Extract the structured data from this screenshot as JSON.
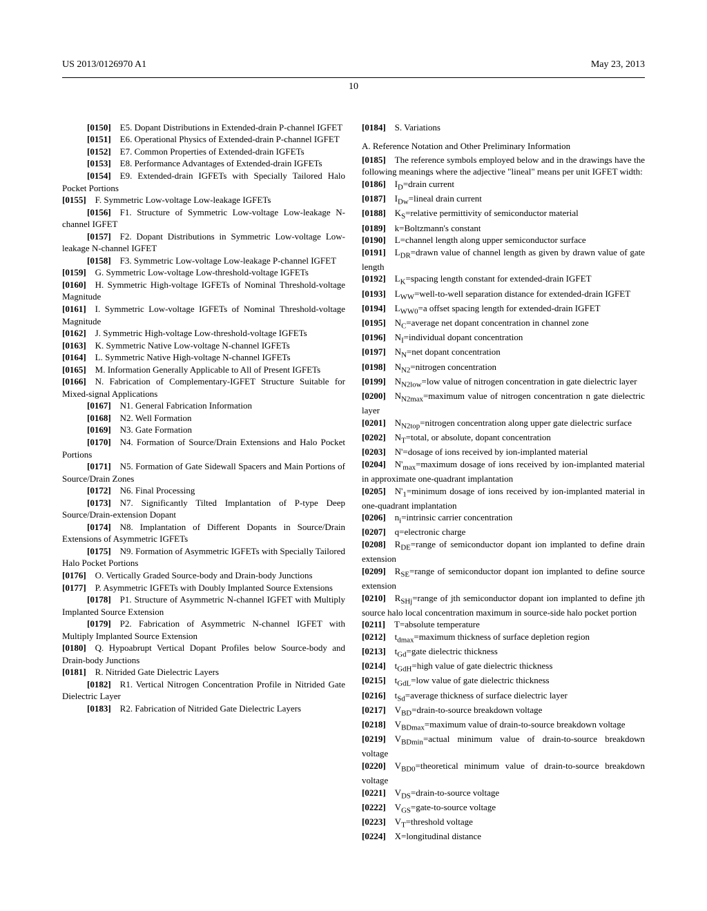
{
  "header": {
    "left": "US 2013/0126970 A1",
    "right": "May 23, 2013"
  },
  "page_number": "10",
  "left_column": [
    {
      "num": "[0150]",
      "indent": 2,
      "text": "E5. Dopant Distributions in Extended-drain P-channel IGFET"
    },
    {
      "num": "[0151]",
      "indent": 2,
      "text": "E6. Operational Physics of Extended-drain P-channel IGFET"
    },
    {
      "num": "[0152]",
      "indent": 2,
      "text": "E7. Common Properties of Extended-drain IGFETs"
    },
    {
      "num": "[0153]",
      "indent": 2,
      "text": "E8. Performance Advantages of Extended-drain IGFETs"
    },
    {
      "num": "[0154]",
      "indent": 2,
      "text": "E9. Extended-drain IGFETs with Specially Tailored Halo Pocket Portions"
    },
    {
      "num": "[0155]",
      "indent": 0,
      "text": "F. Symmetric Low-voltage Low-leakage IGFETs"
    },
    {
      "num": "[0156]",
      "indent": 2,
      "text": "F1. Structure of Symmetric Low-voltage Low-leakage N-channel IGFET"
    },
    {
      "num": "[0157]",
      "indent": 2,
      "text": "F2. Dopant Distributions in Symmetric Low-voltage Low-leakage N-channel IGFET"
    },
    {
      "num": "[0158]",
      "indent": 2,
      "text": "F3. Symmetric Low-voltage Low-leakage P-channel IGFET"
    },
    {
      "num": "[0159]",
      "indent": 0,
      "text": "G. Symmetric Low-voltage Low-threshold-voltage IGFETs"
    },
    {
      "num": "[0160]",
      "indent": 0,
      "text": "H. Symmetric High-voltage IGFETs of Nominal Threshold-voltage Magnitude"
    },
    {
      "num": "[0161]",
      "indent": 0,
      "text": "I. Symmetric Low-voltage IGFETs of Nominal Threshold-voltage Magnitude"
    },
    {
      "num": "[0162]",
      "indent": 0,
      "text": "J. Symmetric High-voltage Low-threshold-voltage IGFETs"
    },
    {
      "num": "[0163]",
      "indent": 0,
      "text": "K. Symmetric Native Low-voltage N-channel IGFETs"
    },
    {
      "num": "[0164]",
      "indent": 0,
      "text": "L. Symmetric Native High-voltage N-channel IGFETs"
    },
    {
      "num": "[0165]",
      "indent": 0,
      "text": "M. Information Generally Applicable to All of Present IGFETs"
    },
    {
      "num": "[0166]",
      "indent": 0,
      "text": "N. Fabrication of Complementary-IGFET Structure Suitable for Mixed-signal Applications"
    },
    {
      "num": "[0167]",
      "indent": 2,
      "text": "N1. General Fabrication Information"
    },
    {
      "num": "[0168]",
      "indent": 2,
      "text": "N2. Well Formation"
    },
    {
      "num": "[0169]",
      "indent": 2,
      "text": "N3. Gate Formation"
    },
    {
      "num": "[0170]",
      "indent": 2,
      "text": "N4. Formation of Source/Drain Extensions and Halo Pocket Portions"
    },
    {
      "num": "[0171]",
      "indent": 2,
      "text": "N5. Formation of Gate Sidewall Spacers and Main Portions of Source/Drain Zones"
    },
    {
      "num": "[0172]",
      "indent": 2,
      "text": "N6. Final Processing"
    },
    {
      "num": "[0173]",
      "indent": 2,
      "text": "N7. Significantly Tilted Implantation of P-type Deep Source/Drain-extension Dopant"
    },
    {
      "num": "[0174]",
      "indent": 2,
      "text": "N8. Implantation of Different Dopants in Source/Drain Extensions of Asymmetric IGFETs"
    },
    {
      "num": "[0175]",
      "indent": 2,
      "text": "N9. Formation of Asymmetric IGFETs with Specially Tailored Halo Pocket Portions"
    },
    {
      "num": "[0176]",
      "indent": 0,
      "text": "O. Vertically Graded Source-body and Drain-body Junctions"
    },
    {
      "num": "[0177]",
      "indent": 0,
      "text": "P. Asymmetric IGFETs with Doubly Implanted Source Extensions"
    },
    {
      "num": "[0178]",
      "indent": 2,
      "text": "P1. Structure of Asymmetric N-channel IGFET with Multiply Implanted Source Extension"
    },
    {
      "num": "[0179]",
      "indent": 2,
      "text": "P2. Fabrication of Asymmetric N-channel IGFET with Multiply Implanted Source Extension"
    },
    {
      "num": "[0180]",
      "indent": 0,
      "text": "Q. Hypoabrupt Vertical Dopant Profiles below Source-body and Drain-body Junctions"
    },
    {
      "num": "[0181]",
      "indent": 0,
      "text": "R. Nitrided Gate Dielectric Layers"
    },
    {
      "num": "[0182]",
      "indent": 2,
      "text": "R1. Vertical Nitrogen Concentration Profile in Nitrided Gate Dielectric Layer"
    },
    {
      "num": "[0183]",
      "indent": 2,
      "text": "R2. Fabrication of Nitrided Gate Dielectric Layers"
    }
  ],
  "right_column_top": {
    "num": "[0184]",
    "indent": 0,
    "text": "S. Variations"
  },
  "section_a_title": "A. Reference Notation and Other Preliminary Information",
  "right_intro": {
    "num": "[0185]",
    "indent": 1,
    "text": "The reference symbols employed below and in the drawings have the following meanings where the adjective \"lineal\" means per unit IGFET width:"
  },
  "symbols": [
    {
      "num": "[0186]",
      "html": "I<sub>D</sub>=drain current"
    },
    {
      "num": "[0187]",
      "html": "I<sub>Dw</sub>=lineal drain current"
    },
    {
      "num": "[0188]",
      "html": "K<sub>S</sub>=relative permittivity of semiconductor material"
    },
    {
      "num": "[0189]",
      "html": "k=Boltzmann's constant"
    },
    {
      "num": "[0190]",
      "html": "L=channel length along upper semiconductor surface"
    },
    {
      "num": "[0191]",
      "html": "L<sub>DR</sub>=drawn value of channel length as given by drawn value of gate length"
    },
    {
      "num": "[0192]",
      "html": "L<sub>K</sub>=spacing length constant for extended-drain IGFET"
    },
    {
      "num": "[0193]",
      "html": "L<sub>WW</sub>=well-to-well separation distance for extended-drain IGFET"
    },
    {
      "num": "[0194]",
      "html": "L<sub>WW0</sub>=a offset spacing length for extended-drain IGFET"
    },
    {
      "num": "[0195]",
      "html": "N<sub>C</sub>=average net dopant concentration in channel zone"
    },
    {
      "num": "[0196]",
      "html": "N<sub>I</sub>=individual dopant concentration"
    },
    {
      "num": "[0197]",
      "html": "N<sub>N</sub>=net dopant concentration"
    },
    {
      "num": "[0198]",
      "html": "N<sub>N2</sub>=nitrogen concentration"
    },
    {
      "num": "[0199]",
      "html": "N<sub>N2low</sub>=low value of nitrogen concentration in gate dielectric layer"
    },
    {
      "num": "[0200]",
      "html": "N<sub>N2max</sub>=maximum value of nitrogen concentration n gate dielectric layer"
    },
    {
      "num": "[0201]",
      "html": "N<sub>N2top</sub>=nitrogen concentration along upper gate dielectric surface"
    },
    {
      "num": "[0202]",
      "html": "N<sub>T</sub>=total, or absolute, dopant concentration"
    },
    {
      "num": "[0203]",
      "html": "N'=dosage of ions received by ion-implanted material"
    },
    {
      "num": "[0204]",
      "html": "N'<sub>max</sub>=maximum dosage of ions received by ion-implanted material in approximate one-quadrant implantation"
    },
    {
      "num": "[0205]",
      "html": "N'<sub>1</sub>=minimum dosage of ions received by ion-implanted material in one-quadrant implantation"
    },
    {
      "num": "[0206]",
      "html": "n<sub>i</sub>=intrinsic carrier concentration"
    },
    {
      "num": "[0207]",
      "html": "q=electronic charge"
    },
    {
      "num": "[0208]",
      "html": "R<sub>DE</sub>=range of semiconductor dopant ion implanted to define drain extension"
    },
    {
      "num": "[0209]",
      "html": "R<sub>SE</sub>=range of semiconductor dopant ion implanted to define source extension"
    },
    {
      "num": "[0210]",
      "html": "R<sub>SHj</sub>=range of jth semiconductor dopant ion implanted to define jth source halo local concentration maximum in source-side halo pocket portion"
    },
    {
      "num": "[0211]",
      "html": "T=absolute temperature"
    },
    {
      "num": "[0212]",
      "html": "t<sub>dmax</sub>=maximum thickness of surface depletion region"
    },
    {
      "num": "[0213]",
      "html": "t<sub>Gd</sub>=gate dielectric thickness"
    },
    {
      "num": "[0214]",
      "html": "t<sub>GdH</sub>=high value of gate dielectric thickness"
    },
    {
      "num": "[0215]",
      "html": "t<sub>GdL</sub>=low value of gate dielectric thickness"
    },
    {
      "num": "[0216]",
      "html": "t<sub>Sd</sub>=average thickness of surface dielectric layer"
    },
    {
      "num": "[0217]",
      "html": "V<sub>BD</sub>=drain-to-source breakdown voltage"
    },
    {
      "num": "[0218]",
      "html": "V<sub>BDmax</sub>=maximum value of drain-to-source breakdown voltage"
    },
    {
      "num": "[0219]",
      "html": "V<sub>BDmin</sub>=actual minimum value of drain-to-source breakdown voltage"
    },
    {
      "num": "[0220]",
      "html": "V<sub>BD0</sub>=theoretical minimum value of drain-to-source breakdown voltage"
    },
    {
      "num": "[0221]",
      "html": "V<sub>DS</sub>=drain-to-source voltage"
    },
    {
      "num": "[0222]",
      "html": "V<sub>GS</sub>=gate-to-source voltage"
    },
    {
      "num": "[0223]",
      "html": "V<sub>T</sub>=threshold voltage"
    },
    {
      "num": "[0224]",
      "html": "X=longitudinal distance"
    }
  ]
}
